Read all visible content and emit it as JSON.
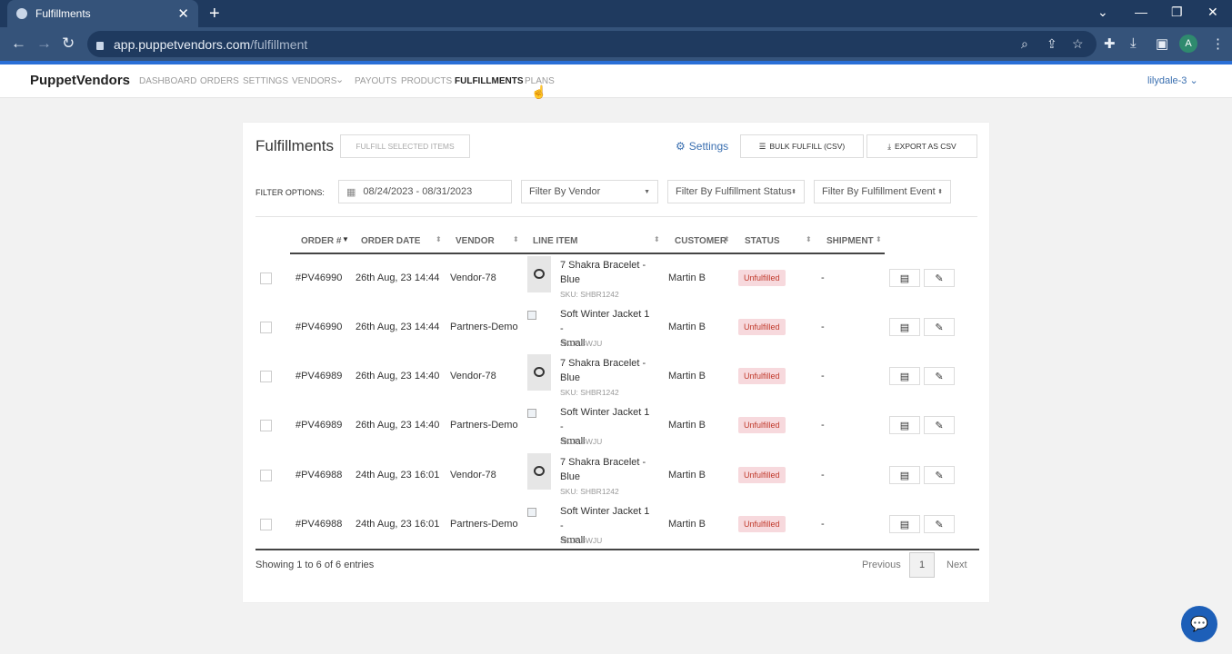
{
  "browser": {
    "tab_title": "Fulfillments",
    "tab_close": "✕",
    "new_tab": "+",
    "url_domain": "app.puppetvendors.com",
    "url_path": "/fulfillment",
    "profile_initial": "A"
  },
  "app": {
    "brand": "PuppetVendors",
    "nav": [
      "DASHBOARD",
      "ORDERS",
      "SETTINGS",
      "VENDORS",
      "PAYOUTS",
      "PRODUCTS",
      "FULFILLMENTS",
      "PLANS"
    ],
    "active_nav": "FULFILLMENTS",
    "user": "lilydale-3"
  },
  "card": {
    "title": "Fulfillments",
    "fulfill_selected": "FULFILL SELECTED ITEMS",
    "settings": "Settings",
    "bulk_fulfill": "BULK FULFILL (CSV)",
    "export_csv": "EXPORT AS CSV",
    "filter_label": "FILTER OPTIONS:",
    "date_range": "08/24/2023 - 08/31/2023",
    "filter_vendor": "Filter By Vendor",
    "filter_status": "Filter By Fulfillment Status",
    "filter_event": "Filter By Fulfillment Event"
  },
  "table": {
    "headers": {
      "order": "ORDER #",
      "date": "ORDER DATE",
      "vendor": "VENDOR",
      "item": "LINE ITEM",
      "customer": "CUSTOMER",
      "status": "STATUS",
      "shipment": "SHIPMENT"
    },
    "rows": [
      {
        "order": "#PV46990",
        "date": "26th Aug, 23 14:44",
        "vendor": "Vendor-78",
        "item_line1": "7 Shakra Bracelet -",
        "item_line2": "Blue",
        "sku": "SKU: SHBR1242",
        "customer": "Martin B",
        "status": "Unfulfilled",
        "shipment": "-"
      },
      {
        "order": "#PV46990",
        "date": "26th Aug, 23 14:44",
        "vendor": "Partners-Demo",
        "item_line1": "Soft Winter Jacket 1 -",
        "item_line2": "Small",
        "sku": "SKU: SWJU",
        "customer": "Martin B",
        "status": "Unfulfilled",
        "shipment": "-"
      },
      {
        "order": "#PV46989",
        "date": "26th Aug, 23 14:40",
        "vendor": "Vendor-78",
        "item_line1": "7 Shakra Bracelet -",
        "item_line2": "Blue",
        "sku": "SKU: SHBR1242",
        "customer": "Martin B",
        "status": "Unfulfilled",
        "shipment": "-"
      },
      {
        "order": "#PV46989",
        "date": "26th Aug, 23 14:40",
        "vendor": "Partners-Demo",
        "item_line1": "Soft Winter Jacket 1 -",
        "item_line2": "Small",
        "sku": "SKU: SWJU",
        "customer": "Martin B",
        "status": "Unfulfilled",
        "shipment": "-"
      },
      {
        "order": "#PV46988",
        "date": "24th Aug, 23 16:01",
        "vendor": "Vendor-78",
        "item_line1": "7 Shakra Bracelet -",
        "item_line2": "Blue",
        "sku": "SKU: SHBR1242",
        "customer": "Martin B",
        "status": "Unfulfilled",
        "shipment": "-"
      },
      {
        "order": "#PV46988",
        "date": "24th Aug, 23 16:01",
        "vendor": "Partners-Demo",
        "item_line1": "Soft Winter Jacket 1 -",
        "item_line2": "Small",
        "sku": "SKU: SWJU",
        "customer": "Martin B",
        "status": "Unfulfilled",
        "shipment": "-"
      }
    ]
  },
  "footer": {
    "showing": "Showing 1 to 6 of 6 entries",
    "previous": "Previous",
    "page": "1",
    "next": "Next"
  },
  "colors": {
    "browser_dark": "#1f3a5f",
    "accent": "#2a6fd6",
    "badge_bg": "#f7d9dd",
    "badge_text": "#c0392b"
  }
}
